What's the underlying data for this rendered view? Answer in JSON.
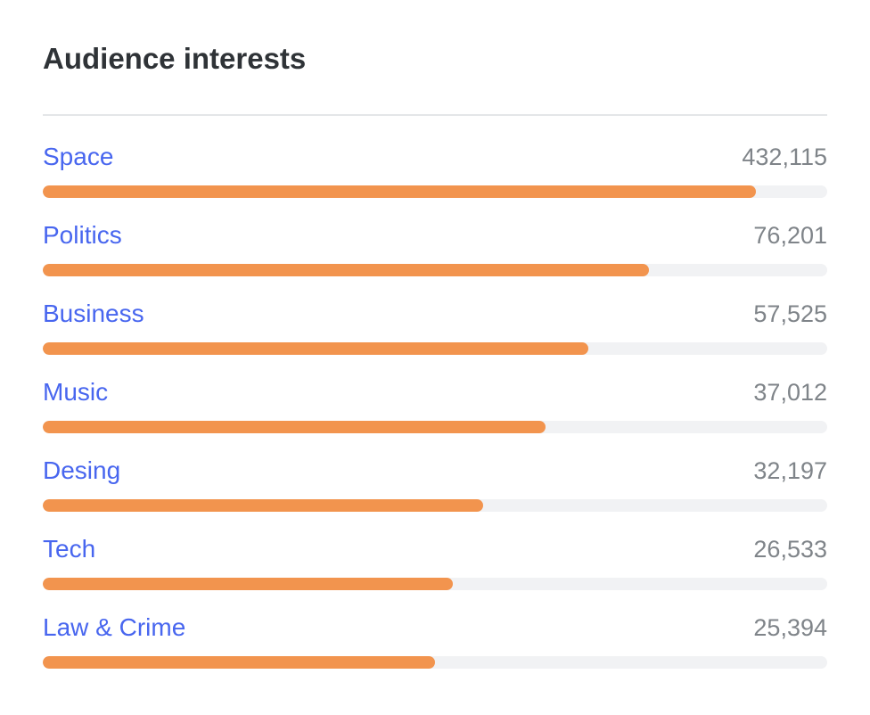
{
  "widget": {
    "title": "Audience interests"
  },
  "colors": {
    "label": "#4866ef",
    "value": "#7f8489",
    "bar_fill": "#f2944e",
    "bar_track": "#f1f2f4",
    "title": "#2f3337"
  },
  "interests": [
    {
      "label": "Space",
      "value": "432,115",
      "fill_fraction": 0.909
    },
    {
      "label": "Politics",
      "value": "76,201",
      "fill_fraction": 0.773
    },
    {
      "label": "Business",
      "value": "57,525",
      "fill_fraction": 0.695
    },
    {
      "label": "Music",
      "value": "37,012",
      "fill_fraction": 0.641
    },
    {
      "label": "Desing",
      "value": "32,197",
      "fill_fraction": 0.561
    },
    {
      "label": "Tech",
      "value": "26,533",
      "fill_fraction": 0.523
    },
    {
      "label": "Law & Crime",
      "value": "25,394",
      "fill_fraction": 0.5
    }
  ]
}
